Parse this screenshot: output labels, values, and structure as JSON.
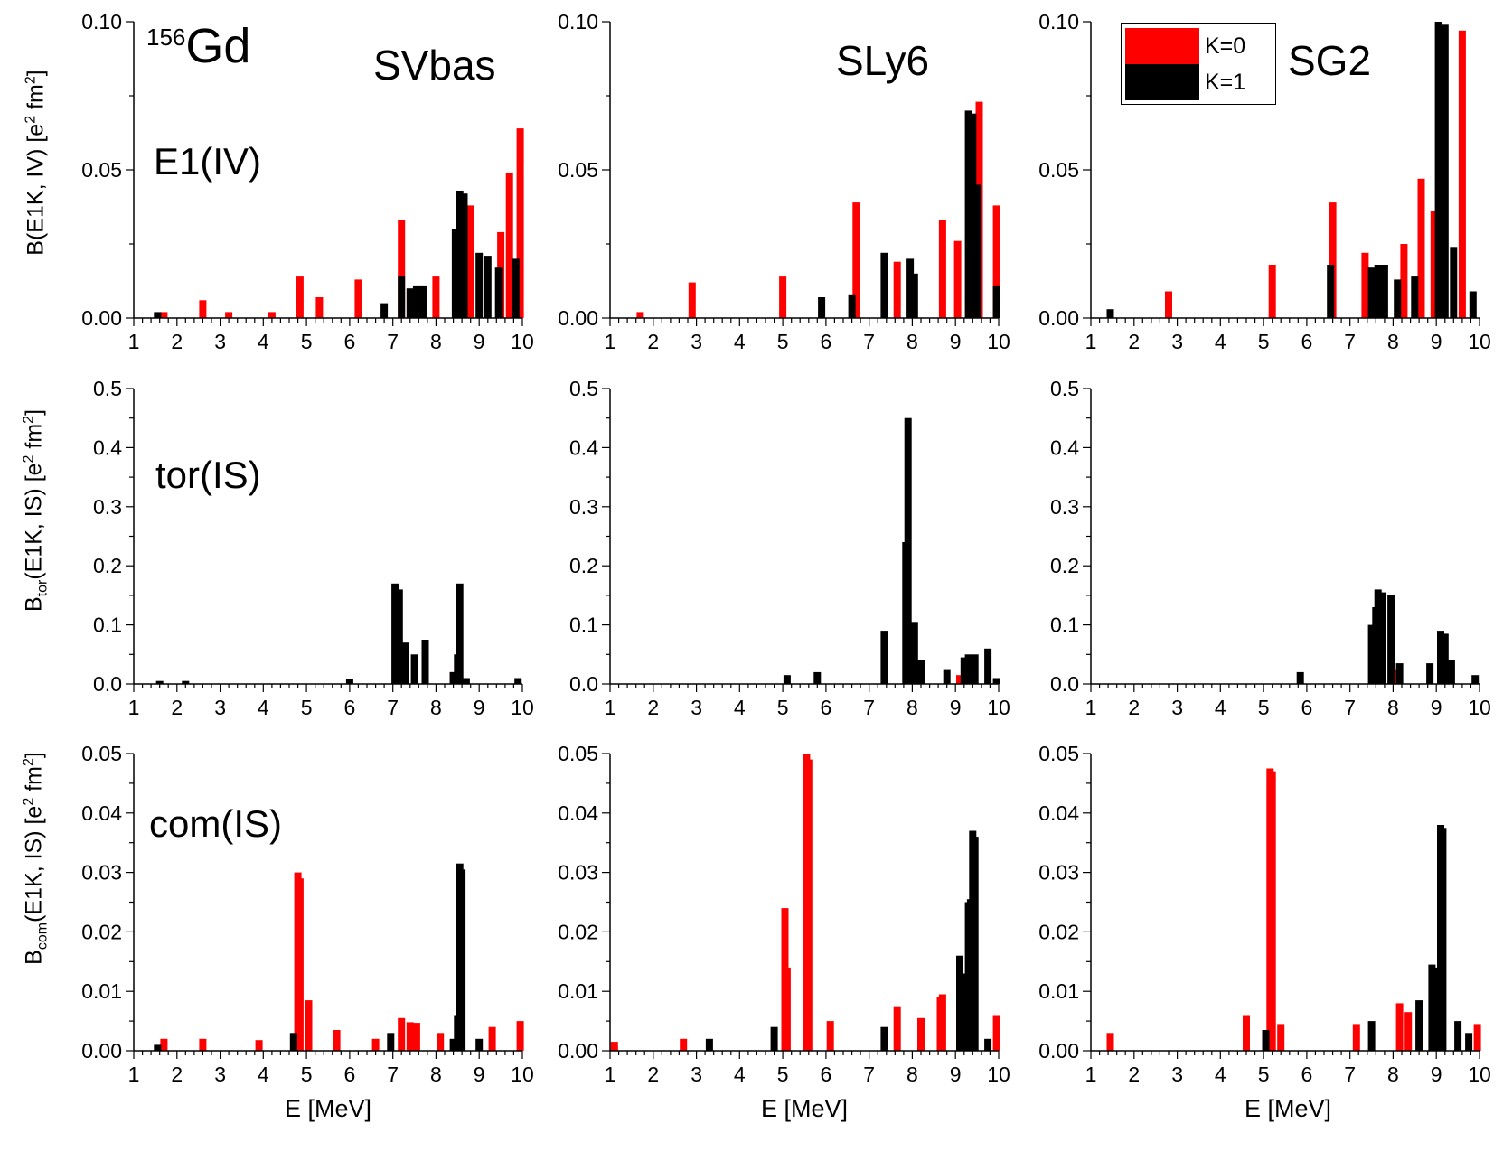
{
  "colors": {
    "k0": "#ff0000",
    "k1": "#000000"
  },
  "legend": {
    "k0": "K=0",
    "k1": "K=1"
  },
  "labels": {
    "nucleus_mass": "156",
    "nucleus_symbol": "Gd",
    "model_svbas": "SVbas",
    "model_sly6": "SLy6",
    "model_sg2": "SG2",
    "row1": "E1(IV)",
    "row2": "tor(IS)",
    "row3": "com(IS)",
    "ylabel_row1": {
      "pre": "B(E1K, IV) [e",
      "sup1": "2",
      "mid": " fm",
      "sup2": "2",
      "post": "]"
    },
    "ylabel_row2": {
      "pre": "B",
      "sub": "tor",
      "mid1": "(E1K, IS) [e",
      "sup1": "2",
      "mid2": " fm",
      "sup2": "2",
      "post": "]"
    },
    "ylabel_row3": {
      "pre": "B",
      "sub": "com",
      "mid1": "(E1K, IS) [e",
      "sup1": "2",
      "mid2": " fm",
      "sup2": "2",
      "post": "]"
    },
    "xlabel": "E [MeV]"
  },
  "chart_data": [
    {
      "type": "bar",
      "row": "E1(IV)",
      "model": "SVbas",
      "xlabel": "",
      "ylabel": "B(E1K, IV) [e2 fm2]",
      "xlim": [
        1,
        10
      ],
      "ylim": [
        0,
        0.1
      ],
      "xticks": [
        "1",
        "2",
        "3",
        "4",
        "5",
        "6",
        "7",
        "8",
        "9",
        "10"
      ],
      "yticks": [
        "0.00",
        "0.05",
        "0.10"
      ],
      "series": [
        {
          "name": "K=0",
          "x": [
            1.7,
            2.6,
            3.2,
            4.2,
            4.85,
            5.3,
            6.2,
            7.2,
            8.0,
            8.6,
            8.8,
            9.5,
            9.7,
            9.95
          ],
          "y": [
            0.002,
            0.006,
            0.002,
            0.002,
            0.014,
            0.007,
            0.013,
            0.033,
            0.014,
            0.024,
            0.038,
            0.029,
            0.049,
            0.064
          ]
        },
        {
          "name": "K=1",
          "x": [
            1.55,
            6.8,
            7.2,
            7.4,
            7.55,
            7.7,
            8.45,
            8.55,
            8.65,
            9.0,
            9.2,
            9.45,
            9.85
          ],
          "y": [
            0.002,
            0.005,
            0.014,
            0.01,
            0.011,
            0.011,
            0.03,
            0.043,
            0.042,
            0.022,
            0.021,
            0.017,
            0.02
          ]
        }
      ]
    },
    {
      "type": "bar",
      "row": "E1(IV)",
      "model": "SLy6",
      "xlabel": "",
      "ylabel": "",
      "xlim": [
        1,
        10
      ],
      "ylim": [
        0,
        0.1
      ],
      "xticks": [
        "1",
        "2",
        "3",
        "4",
        "5",
        "6",
        "7",
        "8",
        "9",
        "10"
      ],
      "yticks": [
        "0.00",
        "0.05",
        "0.10"
      ],
      "series": [
        {
          "name": "K=0",
          "x": [
            1.7,
            2.9,
            5.0,
            6.7,
            7.65,
            8.7,
            9.05,
            9.55,
            9.95
          ],
          "y": [
            0.002,
            0.012,
            0.014,
            0.039,
            0.019,
            0.033,
            0.026,
            0.073,
            0.038
          ]
        },
        {
          "name": "K=1",
          "x": [
            5.9,
            6.6,
            7.35,
            7.95,
            8.05,
            9.3,
            9.4,
            9.5,
            9.95
          ],
          "y": [
            0.007,
            0.008,
            0.022,
            0.02,
            0.015,
            0.07,
            0.069,
            0.045,
            0.011
          ]
        }
      ]
    },
    {
      "type": "bar",
      "row": "E1(IV)",
      "model": "SG2",
      "xlabel": "",
      "ylabel": "",
      "xlim": [
        1,
        10
      ],
      "ylim": [
        0,
        0.1
      ],
      "xticks": [
        "1",
        "2",
        "3",
        "4",
        "5",
        "6",
        "7",
        "8",
        "9",
        "10"
      ],
      "yticks": [
        "0.00",
        "0.05",
        "0.10"
      ],
      "series": [
        {
          "name": "K=0",
          "x": [
            2.8,
            5.2,
            6.6,
            7.35,
            8.25,
            8.65,
            8.95,
            9.1,
            9.6
          ],
          "y": [
            0.009,
            0.018,
            0.039,
            0.022,
            0.025,
            0.047,
            0.036,
            0.046,
            0.097
          ]
        },
        {
          "name": "K=1",
          "x": [
            1.45,
            6.55,
            7.5,
            7.65,
            7.8,
            8.1,
            8.5,
            9.05,
            9.2,
            9.4,
            9.85
          ],
          "y": [
            0.003,
            0.018,
            0.017,
            0.018,
            0.018,
            0.013,
            0.014,
            0.1,
            0.099,
            0.024,
            0.009
          ]
        }
      ]
    },
    {
      "type": "bar",
      "row": "tor(IS)",
      "model": "SVbas",
      "xlabel": "",
      "ylabel": "Btor(E1K, IS) [e2 fm2]",
      "xlim": [
        1,
        10
      ],
      "ylim": [
        0,
        0.5
      ],
      "xticks": [
        "1",
        "2",
        "3",
        "4",
        "5",
        "6",
        "7",
        "8",
        "9",
        "10"
      ],
      "yticks": [
        "0.0",
        "0.1",
        "0.2",
        "0.3",
        "0.4",
        "0.5"
      ],
      "series": [
        {
          "name": "K=0",
          "x": [
            7.15,
            7.3,
            8.4
          ],
          "y": [
            0.04,
            0.025,
            0.02
          ]
        },
        {
          "name": "K=1",
          "x": [
            1.6,
            2.2,
            6.0,
            7.05,
            7.15,
            7.3,
            7.5,
            7.75,
            8.4,
            8.5,
            8.55,
            8.7,
            9.9
          ],
          "y": [
            0.005,
            0.005,
            0.008,
            0.17,
            0.16,
            0.07,
            0.05,
            0.075,
            0.02,
            0.05,
            0.17,
            0.01,
            0.01
          ]
        }
      ]
    },
    {
      "type": "bar",
      "row": "tor(IS)",
      "model": "SLy6",
      "xlabel": "",
      "ylabel": "",
      "xlim": [
        1,
        10
      ],
      "ylim": [
        0,
        0.5
      ],
      "xticks": [
        "1",
        "2",
        "3",
        "4",
        "5",
        "6",
        "7",
        "8",
        "9",
        "10"
      ],
      "yticks": [
        "0.0",
        "0.1",
        "0.2",
        "0.3",
        "0.4",
        "0.5"
      ],
      "series": [
        {
          "name": "K=0",
          "x": [
            8.0,
            9.1
          ],
          "y": [
            0.02,
            0.015
          ]
        },
        {
          "name": "K=1",
          "x": [
            5.1,
            5.8,
            7.35,
            7.85,
            7.9,
            7.95,
            8.05,
            8.2,
            8.8,
            9.2,
            9.3,
            9.45,
            9.75,
            9.95
          ],
          "y": [
            0.015,
            0.02,
            0.09,
            0.24,
            0.45,
            0.1,
            0.105,
            0.04,
            0.025,
            0.045,
            0.05,
            0.05,
            0.06,
            0.01
          ]
        }
      ]
    },
    {
      "type": "bar",
      "row": "tor(IS)",
      "model": "SG2",
      "xlabel": "",
      "ylabel": "",
      "xlim": [
        1,
        10
      ],
      "ylim": [
        0,
        0.5
      ],
      "xticks": [
        "1",
        "2",
        "3",
        "4",
        "5",
        "6",
        "7",
        "8",
        "9",
        "10"
      ],
      "yticks": [
        "0.0",
        "0.1",
        "0.2",
        "0.3",
        "0.4",
        "0.5"
      ],
      "series": [
        {
          "name": "K=0",
          "x": [
            7.7,
            8.1
          ],
          "y": [
            0.03,
            0.025
          ]
        },
        {
          "name": "K=1",
          "x": [
            5.85,
            7.5,
            7.6,
            7.65,
            7.75,
            7.95,
            8.15,
            8.85,
            9.1,
            9.2,
            9.35,
            9.9
          ],
          "y": [
            0.02,
            0.1,
            0.13,
            0.16,
            0.155,
            0.15,
            0.035,
            0.035,
            0.09,
            0.085,
            0.04,
            0.015
          ]
        }
      ]
    },
    {
      "type": "bar",
      "row": "com(IS)",
      "model": "SVbas",
      "xlabel": "E [MeV]",
      "ylabel": "Bcom(E1K, IS) [e2 fm2]",
      "xlim": [
        1,
        10
      ],
      "ylim": [
        0,
        0.05
      ],
      "xticks": [
        "1",
        "2",
        "3",
        "4",
        "5",
        "6",
        "7",
        "8",
        "9",
        "10"
      ],
      "yticks": [
        "0.00",
        "0.01",
        "0.02",
        "0.03",
        "0.04",
        "0.05"
      ],
      "series": [
        {
          "name": "K=0",
          "x": [
            1.7,
            2.6,
            3.9,
            4.8,
            4.85,
            5.05,
            5.7,
            6.6,
            7.2,
            7.4,
            7.55,
            8.1,
            9.3,
            9.95
          ],
          "y": [
            0.002,
            0.002,
            0.0018,
            0.03,
            0.029,
            0.0085,
            0.0035,
            0.002,
            0.0055,
            0.0048,
            0.0047,
            0.003,
            0.004,
            0.005
          ]
        },
        {
          "name": "K=1",
          "x": [
            1.55,
            4.7,
            6.95,
            8.4,
            8.5,
            8.55,
            8.6,
            9.0
          ],
          "y": [
            0.001,
            0.003,
            0.003,
            0.002,
            0.006,
            0.0315,
            0.0305,
            0.002
          ]
        }
      ]
    },
    {
      "type": "bar",
      "row": "com(IS)",
      "model": "SLy6",
      "xlabel": "E [MeV]",
      "ylabel": "",
      "xlim": [
        1,
        10
      ],
      "ylim": [
        0,
        0.05
      ],
      "xticks": [
        "1",
        "2",
        "3",
        "4",
        "5",
        "6",
        "7",
        "8",
        "9",
        "10"
      ],
      "yticks": [
        "0.00",
        "0.01",
        "0.02",
        "0.03",
        "0.04",
        "0.05"
      ],
      "series": [
        {
          "name": "K=0",
          "x": [
            1.1,
            2.7,
            5.05,
            5.1,
            5.55,
            5.6,
            6.1,
            7.65,
            8.2,
            8.65,
            8.7,
            9.95
          ],
          "y": [
            0.0015,
            0.002,
            0.024,
            0.014,
            0.05,
            0.049,
            0.005,
            0.0075,
            0.0055,
            0.009,
            0.0095,
            0.006
          ]
        },
        {
          "name": "K=1",
          "x": [
            3.3,
            4.8,
            7.35,
            9.1,
            9.2,
            9.3,
            9.35,
            9.4,
            9.45,
            9.75
          ],
          "y": [
            0.002,
            0.004,
            0.004,
            0.016,
            0.013,
            0.025,
            0.0255,
            0.037,
            0.036,
            0.002
          ]
        }
      ]
    },
    {
      "type": "bar",
      "row": "com(IS)",
      "model": "SG2",
      "xlabel": "E [MeV]",
      "ylabel": "",
      "xlim": [
        1,
        10
      ],
      "ylim": [
        0,
        0.05
      ],
      "xticks": [
        "1",
        "2",
        "3",
        "4",
        "5",
        "6",
        "7",
        "8",
        "9",
        "10"
      ],
      "yticks": [
        "0.00",
        "0.01",
        "0.02",
        "0.03",
        "0.04",
        "0.05"
      ],
      "series": [
        {
          "name": "K=0",
          "x": [
            1.45,
            4.6,
            5.15,
            5.2,
            5.4,
            7.15,
            8.15,
            8.35,
            9.95
          ],
          "y": [
            0.003,
            0.006,
            0.0475,
            0.047,
            0.0045,
            0.0045,
            0.008,
            0.0065,
            0.0045
          ]
        },
        {
          "name": "K=1",
          "x": [
            5.05,
            7.5,
            8.6,
            8.9,
            8.95,
            9.1,
            9.15,
            9.5,
            9.75
          ],
          "y": [
            0.0035,
            0.005,
            0.0085,
            0.0145,
            0.014,
            0.038,
            0.0375,
            0.005,
            0.003
          ]
        }
      ]
    }
  ]
}
